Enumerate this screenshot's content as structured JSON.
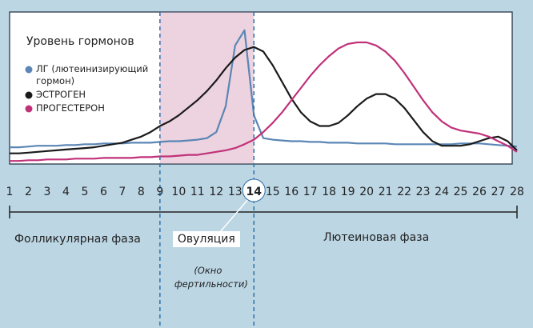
{
  "chart_data": {
    "type": "line",
    "title": "Уровень гормонов",
    "x": [
      1,
      1.5,
      2,
      2.5,
      3,
      3.5,
      4,
      4.5,
      5,
      5.5,
      6,
      6.5,
      7,
      7.5,
      8,
      8.5,
      9,
      9.5,
      10,
      10.5,
      11,
      11.5,
      12,
      12.5,
      13,
      13.5,
      14,
      14.5,
      15,
      15.5,
      16,
      16.5,
      17,
      17.5,
      18,
      18.5,
      19,
      19.5,
      20,
      20.5,
      21,
      21.5,
      22,
      22.5,
      23,
      23.5,
      24,
      24.5,
      25,
      25.5,
      26,
      26.5,
      27,
      27.5,
      28
    ],
    "series": [
      {
        "name": "ЛГ (лютеинизирующий гормон)",
        "color": "#5b86b5",
        "values": [
          11,
          11,
          11.5,
          12,
          12,
          12,
          12.5,
          12.5,
          13,
          13,
          13.5,
          13.5,
          13.5,
          14,
          14,
          14,
          14.5,
          15,
          15,
          15.5,
          16,
          17,
          21,
          38,
          78,
          88,
          32,
          17,
          16,
          15.5,
          15,
          15,
          14.5,
          14.5,
          14,
          14,
          14,
          13.5,
          13.5,
          13.5,
          13.5,
          13,
          13,
          13,
          13,
          13,
          13,
          13,
          13.5,
          13.5,
          13.5,
          13,
          12.5,
          12,
          11.5
        ]
      },
      {
        "name": "ЭСТРОГЕН",
        "color": "#1a1a1a",
        "values": [
          7,
          7,
          7.5,
          8,
          8.5,
          9,
          9.5,
          10,
          10.5,
          11,
          12,
          13,
          14,
          16,
          18,
          21,
          25,
          28,
          32,
          37,
          42,
          48,
          55,
          63,
          70,
          75,
          77,
          74,
          65,
          54,
          43,
          34,
          28,
          25,
          25,
          27,
          32,
          38,
          43,
          46,
          46,
          43,
          37,
          29,
          21,
          15,
          12,
          12,
          12,
          13,
          15,
          17,
          18,
          15,
          9
        ]
      },
      {
        "name": "ПРОГЕСТЕРОН",
        "color": "#c0317a",
        "values": [
          2,
          2,
          2.5,
          2.5,
          3,
          3,
          3,
          3.5,
          3.5,
          3.5,
          4,
          4,
          4,
          4,
          4.5,
          4.5,
          5,
          5,
          5.5,
          6,
          6,
          7,
          8,
          9,
          10.5,
          13,
          16,
          21,
          27,
          34,
          42,
          50,
          58,
          65,
          71,
          76,
          79,
          80,
          80,
          78,
          74,
          68,
          60,
          51,
          42,
          34,
          28,
          24,
          22,
          21,
          20,
          18,
          15,
          12,
          8
        ]
      }
    ],
    "xlim": [
      1,
      28
    ],
    "ylim": [
      0,
      100
    ],
    "xticks": [
      1,
      2,
      3,
      4,
      5,
      6,
      7,
      8,
      9,
      10,
      11,
      12,
      13,
      14,
      15,
      16,
      17,
      18,
      19,
      20,
      21,
      22,
      23,
      24,
      25,
      26,
      27,
      28
    ],
    "highlight": {
      "from": 9,
      "to": 14,
      "color": "#ecd3df"
    },
    "annotations": {
      "follicular": "Фолликулярная фаза",
      "ovulation": "Овуляция",
      "window": "(Окно фертильности)",
      "luteal": "Лютеиновая фаза"
    }
  }
}
